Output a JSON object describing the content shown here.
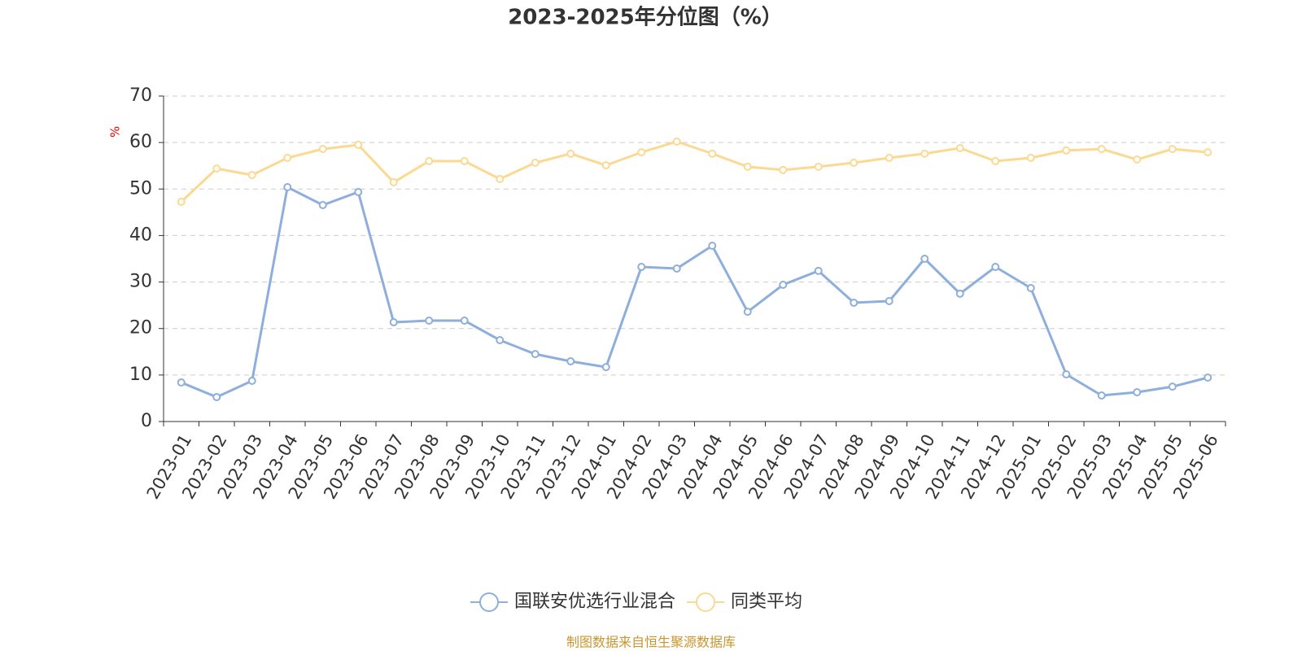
{
  "chart_data": {
    "type": "line",
    "title": "2023-2025年分位图（%）",
    "y_label": "%",
    "categories": [
      "2023-01",
      "2023-02",
      "2023-03",
      "2023-04",
      "2023-05",
      "2023-06",
      "2023-07",
      "2023-08",
      "2023-09",
      "2023-10",
      "2023-11",
      "2023-12",
      "2024-01",
      "2024-02",
      "2024-03",
      "2024-04",
      "2024-05",
      "2024-06",
      "2024-07",
      "2024-08",
      "2024-09",
      "2024-10",
      "2024-11",
      "2024-12",
      "2025-01",
      "2025-02",
      "2025-03",
      "2025-04",
      "2025-05",
      "2025-06"
    ],
    "series": [
      {
        "name": "国联安优选行业混合",
        "color": "#8eaedb",
        "values": [
          8.4,
          5.25,
          8.75,
          50.4,
          46.55,
          49.35,
          21.35,
          21.7,
          21.7,
          17.5,
          14.5,
          12.95,
          11.7,
          33.25,
          32.9,
          37.8,
          23.6,
          29.4,
          32.4,
          25.55,
          25.9,
          35.0,
          27.5,
          33.25,
          28.7,
          10.15,
          5.6,
          6.3,
          7.5,
          9.45
        ]
      },
      {
        "name": "同类平均",
        "color": "#fcd992",
        "values": [
          47.25,
          54.4,
          53.0,
          56.7,
          58.6,
          59.5,
          51.45,
          56.0,
          56.0,
          52.15,
          55.65,
          57.6,
          55.1,
          57.9,
          60.2,
          57.6,
          54.8,
          54.1,
          54.8,
          55.65,
          56.7,
          57.6,
          58.8,
          56.0,
          56.7,
          58.3,
          58.6,
          56.35,
          58.6,
          57.9
        ]
      }
    ],
    "ylim": [
      0,
      70
    ],
    "yticks": [
      0,
      10,
      20,
      30,
      40,
      50,
      60,
      70
    ],
    "grid": true,
    "source": "制图数据来自恒生聚源数据库"
  }
}
